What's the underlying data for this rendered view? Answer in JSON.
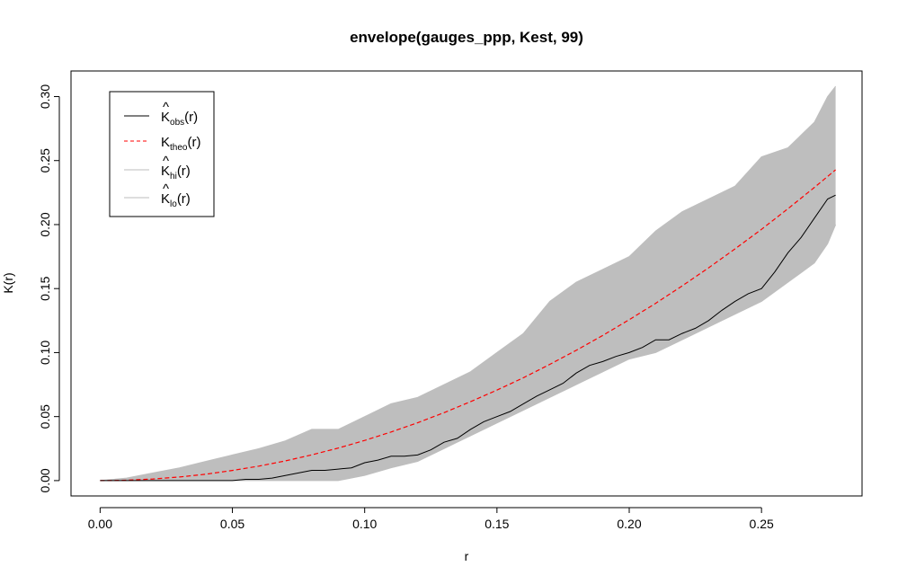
{
  "chart_data": {
    "type": "line",
    "title": "envelope(gauges_ppp, Kest, 99)",
    "xlabel": "r",
    "ylabel": "K(r)",
    "xlim": [
      -0.011,
      0.288
    ],
    "ylim": [
      -0.012,
      0.32
    ],
    "x_ticks": [
      "0.00",
      "0.05",
      "0.10",
      "0.15",
      "0.20",
      "0.25"
    ],
    "x_tick_values": [
      0,
      0.05,
      0.1,
      0.15,
      0.2,
      0.25
    ],
    "y_ticks": [
      "0.00",
      "0.05",
      "0.10",
      "0.15",
      "0.20",
      "0.25",
      "0.30"
    ],
    "y_tick_values": [
      0,
      0.05,
      0.1,
      0.15,
      0.2,
      0.25,
      0.3
    ],
    "grid": false,
    "legend_position": "top-left",
    "legend": [
      {
        "main": "K",
        "hat": "^",
        "sub": "obs",
        "suffix": "(r)",
        "style": "solid",
        "color": "#000000"
      },
      {
        "main": "K",
        "hat": "",
        "sub": "theo",
        "suffix": "(r)",
        "style": "dashed",
        "color": "#ff0000"
      },
      {
        "main": "K",
        "hat": "^",
        "sub": "hi",
        "suffix": "(r)",
        "style": "solid",
        "color": "#bebebe"
      },
      {
        "main": "K",
        "hat": "^",
        "sub": "lo",
        "suffix": "(r)",
        "style": "solid",
        "color": "#bebebe"
      }
    ],
    "series": [
      {
        "key": "obs",
        "color": "#000000",
        "x": [
          0,
          0.01,
          0.02,
          0.03,
          0.04,
          0.05,
          0.055,
          0.06,
          0.065,
          0.07,
          0.075,
          0.08,
          0.085,
          0.09,
          0.095,
          0.1,
          0.105,
          0.11,
          0.115,
          0.12,
          0.125,
          0.13,
          0.135,
          0.14,
          0.145,
          0.15,
          0.155,
          0.16,
          0.165,
          0.17,
          0.175,
          0.18,
          0.185,
          0.19,
          0.195,
          0.2,
          0.205,
          0.21,
          0.215,
          0.22,
          0.225,
          0.23,
          0.235,
          0.24,
          0.245,
          0.25,
          0.255,
          0.26,
          0.265,
          0.27,
          0.275,
          0.278
        ],
        "y": [
          0,
          0,
          0,
          0,
          0,
          0,
          0.001,
          0.001,
          0.002,
          0.004,
          0.006,
          0.008,
          0.008,
          0.009,
          0.01,
          0.014,
          0.016,
          0.019,
          0.019,
          0.02,
          0.024,
          0.03,
          0.033,
          0.04,
          0.046,
          0.05,
          0.054,
          0.06,
          0.066,
          0.071,
          0.076,
          0.084,
          0.09,
          0.093,
          0.097,
          0.1,
          0.104,
          0.11,
          0.11,
          0.115,
          0.119,
          0.125,
          0.133,
          0.14,
          0.146,
          0.15,
          0.163,
          0.178,
          0.19,
          0.205,
          0.22,
          0.223
        ]
      },
      {
        "key": "theo",
        "color": "#ff0000",
        "x": [
          0,
          0.01,
          0.02,
          0.03,
          0.04,
          0.05,
          0.06,
          0.07,
          0.08,
          0.09,
          0.1,
          0.11,
          0.12,
          0.13,
          0.14,
          0.15,
          0.16,
          0.17,
          0.18,
          0.19,
          0.2,
          0.21,
          0.22,
          0.23,
          0.24,
          0.25,
          0.26,
          0.27,
          0.278
        ],
        "y": [
          0,
          0.0003,
          0.0013,
          0.0028,
          0.005,
          0.0079,
          0.0113,
          0.0154,
          0.0201,
          0.0254,
          0.0314,
          0.038,
          0.0452,
          0.0531,
          0.0616,
          0.0707,
          0.0804,
          0.0908,
          0.1018,
          0.1134,
          0.1257,
          0.1385,
          0.1521,
          0.1662,
          0.181,
          0.1963,
          0.2124,
          0.229,
          0.2428
        ]
      },
      {
        "key": "hi",
        "color": "#bebebe",
        "x": [
          0,
          0.01,
          0.02,
          0.03,
          0.04,
          0.05,
          0.06,
          0.07,
          0.08,
          0.09,
          0.1,
          0.11,
          0.12,
          0.13,
          0.14,
          0.15,
          0.16,
          0.17,
          0.18,
          0.19,
          0.2,
          0.21,
          0.22,
          0.23,
          0.24,
          0.25,
          0.26,
          0.27,
          0.275,
          0.278
        ],
        "y": [
          0,
          0.002,
          0.006,
          0.01,
          0.015,
          0.02,
          0.025,
          0.031,
          0.04,
          0.04,
          0.05,
          0.06,
          0.065,
          0.075,
          0.085,
          0.1,
          0.115,
          0.14,
          0.155,
          0.165,
          0.175,
          0.195,
          0.21,
          0.22,
          0.23,
          0.253,
          0.26,
          0.28,
          0.3,
          0.308
        ]
      },
      {
        "key": "lo",
        "color": "#bebebe",
        "x": [
          0,
          0.01,
          0.02,
          0.03,
          0.04,
          0.05,
          0.06,
          0.07,
          0.08,
          0.09,
          0.1,
          0.11,
          0.12,
          0.13,
          0.14,
          0.15,
          0.16,
          0.17,
          0.18,
          0.19,
          0.2,
          0.21,
          0.22,
          0.23,
          0.24,
          0.25,
          0.26,
          0.27,
          0.275,
          0.278
        ],
        "y": [
          0,
          0,
          0,
          0,
          0,
          0,
          0,
          0,
          0,
          0,
          0.004,
          0.01,
          0.015,
          0.025,
          0.035,
          0.045,
          0.055,
          0.065,
          0.075,
          0.085,
          0.095,
          0.1,
          0.11,
          0.12,
          0.13,
          0.14,
          0.155,
          0.17,
          0.185,
          0.2
        ]
      }
    ]
  }
}
